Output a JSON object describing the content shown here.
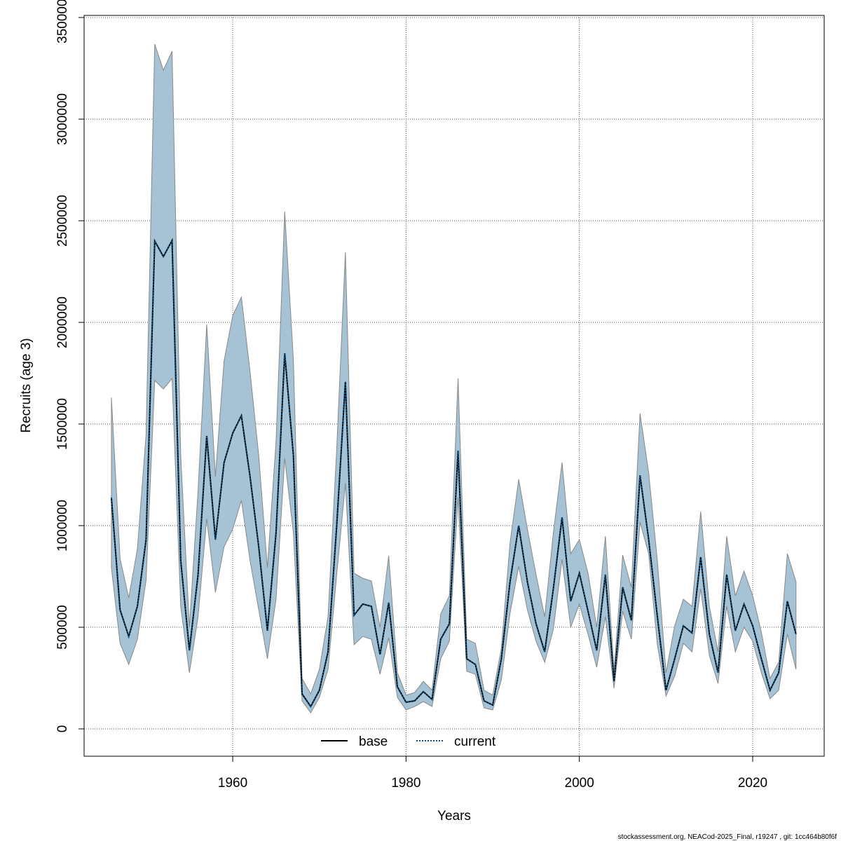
{
  "chart_data": {
    "type": "line",
    "x_label": "Years",
    "y_label": "Recruits (age 3)",
    "footer": "stockassessment.org, NEACod-2025_Final, r19247 , git: 1cc464b80f6f",
    "x": [
      1946,
      1947,
      1948,
      1949,
      1950,
      1951,
      1952,
      1953,
      1954,
      1955,
      1956,
      1957,
      1958,
      1959,
      1960,
      1961,
      1962,
      1963,
      1964,
      1965,
      1966,
      1967,
      1968,
      1969,
      1970,
      1971,
      1972,
      1973,
      1974,
      1975,
      1976,
      1977,
      1978,
      1979,
      1980,
      1981,
      1982,
      1983,
      1984,
      1985,
      1986,
      1987,
      1988,
      1989,
      1990,
      1991,
      1992,
      1993,
      1994,
      1995,
      1996,
      1997,
      1998,
      1999,
      2000,
      2001,
      2002,
      2003,
      2004,
      2005,
      2006,
      2007,
      2008,
      2009,
      2010,
      2011,
      2012,
      2013,
      2014,
      2015,
      2016,
      2017,
      2018,
      2019,
      2020,
      2021,
      2022,
      2023,
      2024,
      2025
    ],
    "series": [
      {
        "name": "base",
        "color": "#000000",
        "dash": false,
        "values": [
          1138000,
          586000,
          455000,
          603000,
          931000,
          2400000,
          2324000,
          2403000,
          828000,
          386000,
          759000,
          1441000,
          931000,
          1310000,
          1455000,
          1541000,
          1241000,
          896000,
          483000,
          965000,
          1848000,
          1345000,
          172000,
          110000,
          190000,
          379000,
          1000000,
          1707000,
          559000,
          614000,
          603000,
          366000,
          621000,
          207000,
          131000,
          138000,
          183000,
          145000,
          441000,
          517000,
          1369000,
          345000,
          317000,
          138000,
          117000,
          345000,
          724000,
          1000000,
          724000,
          517000,
          379000,
          690000,
          1041000,
          628000,
          766000,
          579000,
          386000,
          759000,
          234000,
          697000,
          534000,
          1248000,
          931000,
          552000,
          190000,
          345000,
          507000,
          472000,
          845000,
          466000,
          276000,
          759000,
          483000,
          614000,
          507000,
          345000,
          190000,
          276000,
          628000,
          466000
        ]
      },
      {
        "name": "current",
        "color": "#0b4f80",
        "dash": true,
        "values": [
          1138000,
          586000,
          455000,
          603000,
          931000,
          2400000,
          2324000,
          2403000,
          828000,
          386000,
          759000,
          1441000,
          931000,
          1310000,
          1455000,
          1541000,
          1241000,
          896000,
          483000,
          965000,
          1848000,
          1345000,
          172000,
          110000,
          190000,
          379000,
          1000000,
          1707000,
          559000,
          614000,
          603000,
          366000,
          621000,
          207000,
          131000,
          138000,
          183000,
          145000,
          441000,
          517000,
          1369000,
          345000,
          317000,
          138000,
          117000,
          345000,
          724000,
          1000000,
          724000,
          517000,
          379000,
          690000,
          1041000,
          628000,
          766000,
          579000,
          386000,
          759000,
          234000,
          697000,
          534000,
          1248000,
          931000,
          552000,
          190000,
          345000,
          507000,
          472000,
          845000,
          466000,
          276000,
          759000,
          483000,
          614000,
          507000,
          345000,
          190000,
          276000,
          628000,
          466000
        ]
      }
    ],
    "band": {
      "color": "#a5c3d4",
      "upper": [
        1630000,
        838000,
        645000,
        886000,
        1448000,
        3369000,
        3241000,
        3334000,
        1345000,
        500000,
        1172000,
        1990000,
        1241000,
        1810000,
        2034000,
        2124000,
        1758000,
        1345000,
        793000,
        1414000,
        2545000,
        1817000,
        248000,
        172000,
        293000,
        552000,
        1379000,
        2345000,
        766000,
        741000,
        728000,
        500000,
        852000,
        276000,
        166000,
        179000,
        234000,
        190000,
        566000,
        655000,
        1724000,
        441000,
        421000,
        190000,
        166000,
        397000,
        914000,
        1228000,
        983000,
        759000,
        552000,
        965000,
        1310000,
        862000,
        931000,
        766000,
        500000,
        948000,
        286000,
        855000,
        697000,
        1552000,
        1259000,
        828000,
        276000,
        507000,
        638000,
        603000,
        1069000,
        603000,
        379000,
        948000,
        655000,
        776000,
        655000,
        476000,
        248000,
        328000,
        862000,
        724000
      ],
      "lower": [
        793000,
        421000,
        317000,
        441000,
        731000,
        1714000,
        1672000,
        1724000,
        603000,
        276000,
        552000,
        1034000,
        672000,
        896000,
        983000,
        1124000,
        828000,
        586000,
        345000,
        638000,
        1331000,
        965000,
        138000,
        79000,
        155000,
        293000,
        759000,
        1207000,
        414000,
        455000,
        441000,
        269000,
        448000,
        155000,
        93000,
        110000,
        134000,
        110000,
        345000,
        431000,
        1138000,
        283000,
        269000,
        103000,
        93000,
        241000,
        569000,
        800000,
        586000,
        431000,
        328000,
        490000,
        834000,
        500000,
        614000,
        466000,
        303000,
        552000,
        200000,
        579000,
        441000,
        1017000,
        862000,
        414000,
        162000,
        259000,
        421000,
        379000,
        690000,
        362000,
        224000,
        603000,
        379000,
        500000,
        431000,
        276000,
        148000,
        190000,
        466000,
        293000
      ]
    },
    "xlim": [
      1942.85,
      2028.25
    ],
    "ylim": [
      -134483,
      3510345
    ],
    "xticks": [
      1960,
      1980,
      2000,
      2020
    ],
    "yticks": [
      0,
      500000,
      1000000,
      1500000,
      2000000,
      2500000,
      3000000,
      3500000
    ],
    "grid": true,
    "legend": "bottom"
  }
}
